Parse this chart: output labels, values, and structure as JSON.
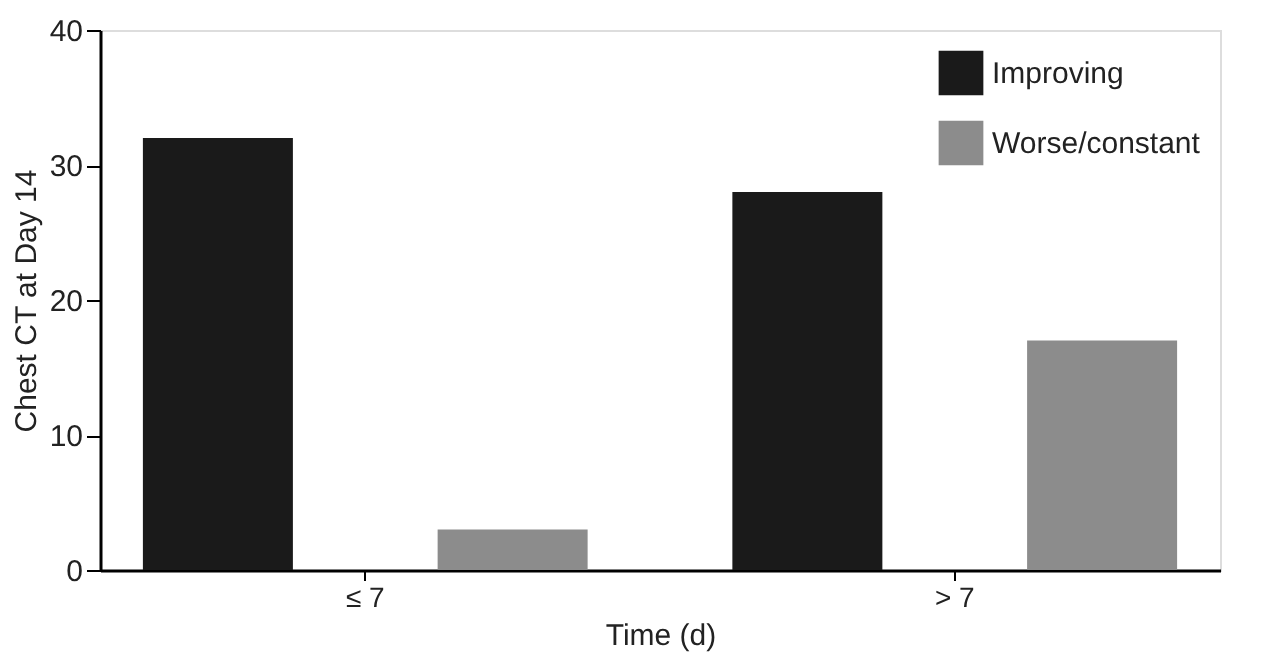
{
  "chart_data": {
    "type": "bar",
    "xlabel": "Time (d)",
    "ylabel": "Chest CT at Day 14",
    "categories": [
      "≤ 7",
      "> 7"
    ],
    "series": [
      {
        "name": "Improving",
        "color": "#1a1a1a",
        "values": [
          32,
          28
        ]
      },
      {
        "name": "Worse/constant",
        "color": "#8c8c8c",
        "values": [
          3,
          17
        ]
      }
    ],
    "ylim": [
      0,
      40
    ],
    "yticks": [
      0,
      10,
      20,
      30,
      40
    ],
    "grid": false,
    "legend": "top right"
  }
}
